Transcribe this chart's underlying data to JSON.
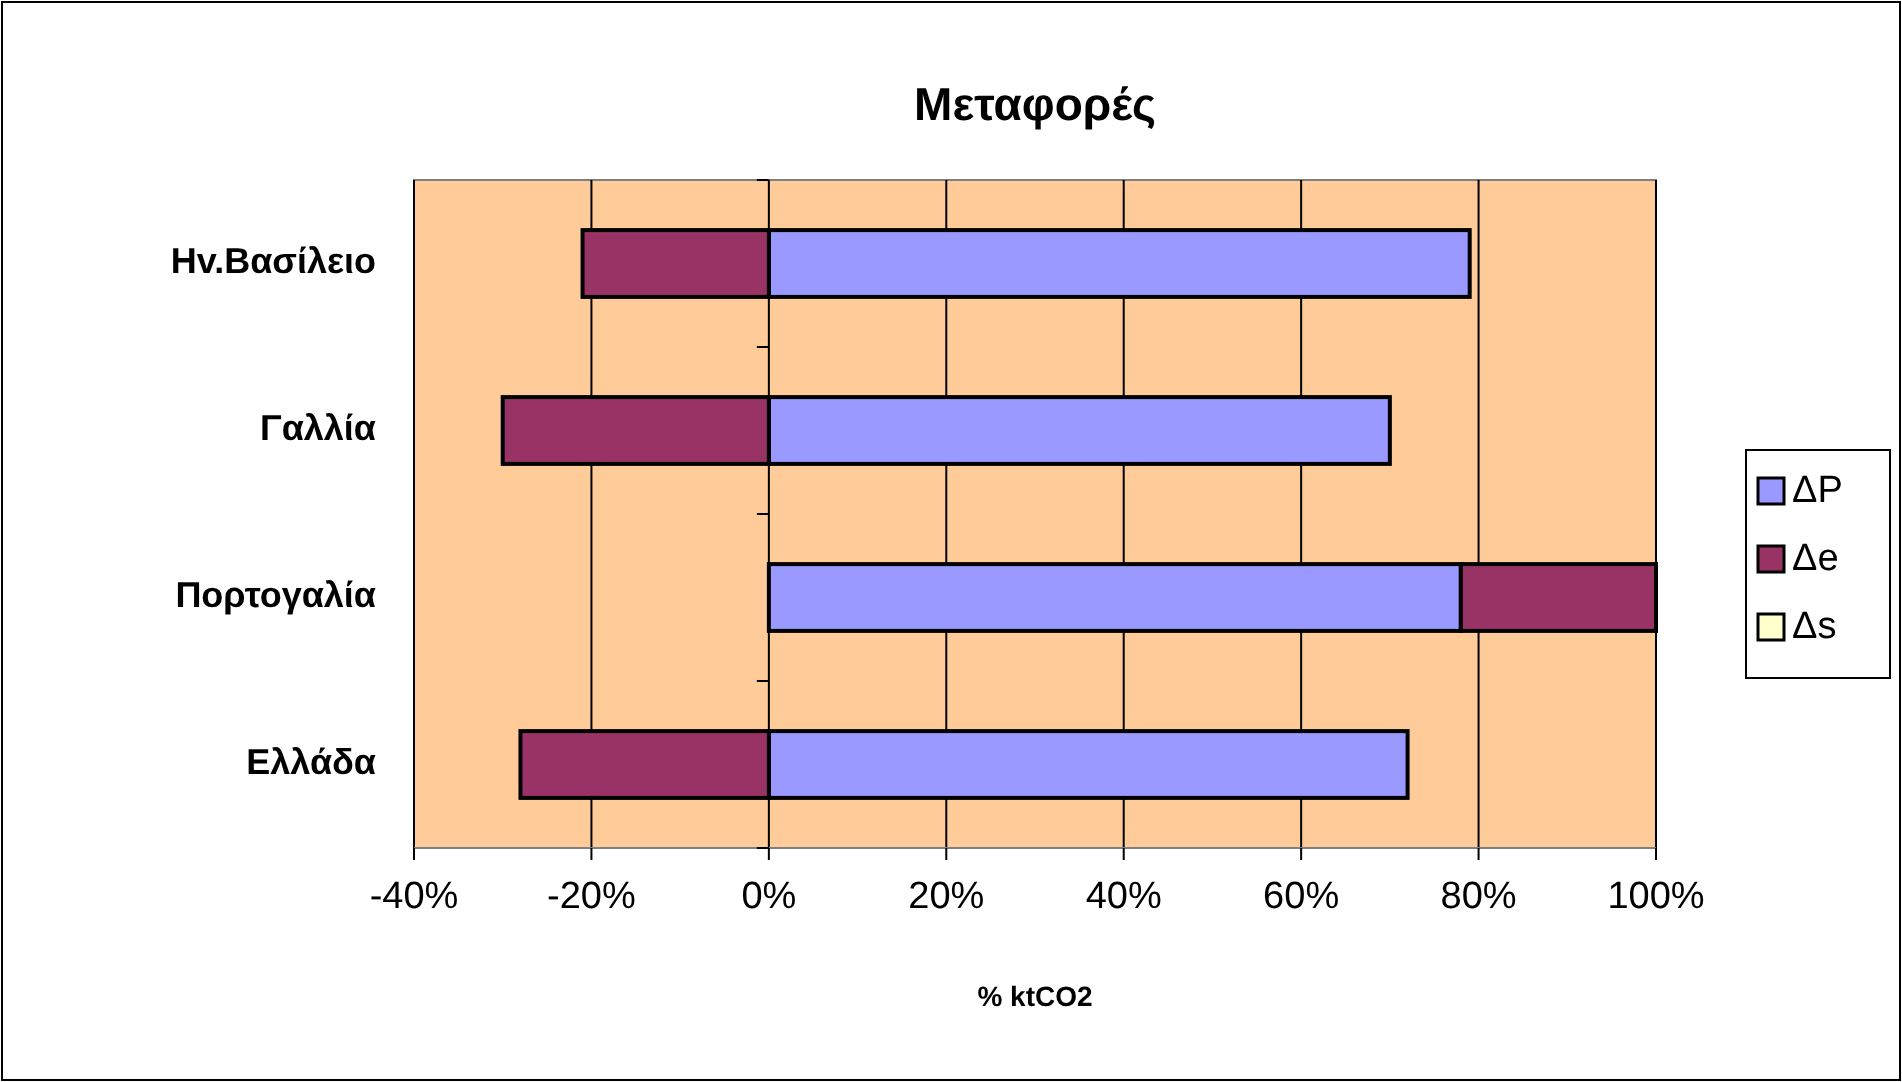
{
  "chart_data": {
    "type": "bar",
    "orientation": "horizontal",
    "stacked": true,
    "title": "Μεταφορές",
    "xlabel": "% ktCO2",
    "categories": [
      "Ηv.Βασίλειο",
      "Γαλλία",
      "Πορτογαλία",
      "Ελλάδα"
    ],
    "series": [
      {
        "name": "ΔP",
        "color": "#9999ff",
        "values": [
          79,
          70,
          78,
          72
        ]
      },
      {
        "name": "Δe",
        "color": "#993366",
        "values": [
          -21,
          -30,
          22,
          -28
        ]
      },
      {
        "name": "Δs",
        "color": "#ffffcc",
        "values": [
          0,
          0,
          0,
          0
        ]
      }
    ],
    "xlim": [
      -40,
      100
    ],
    "xticks": [
      {
        "value": -40,
        "label": "-40%"
      },
      {
        "value": -20,
        "label": "-20%"
      },
      {
        "value": 0,
        "label": "0%"
      },
      {
        "value": 20,
        "label": "20%"
      },
      {
        "value": 40,
        "label": "40%"
      },
      {
        "value": 60,
        "label": "60%"
      },
      {
        "value": 80,
        "label": "80%"
      },
      {
        "value": 100,
        "label": "100%"
      }
    ],
    "grid": "x",
    "legend": "right"
  }
}
